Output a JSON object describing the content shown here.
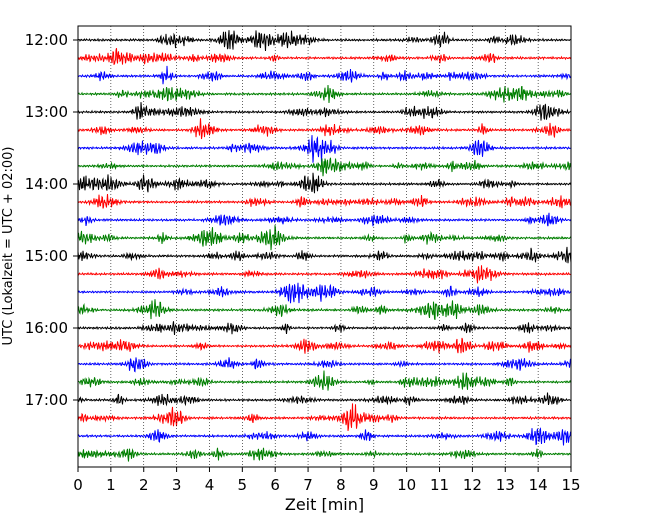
{
  "chart_data": {
    "type": "line",
    "subtype": "seismogram-helicorder",
    "title": "",
    "xlabel": "Zeit  [min]",
    "ylabel": "UTC (Lokalzeit = UTC + 02:00)",
    "xlim": [
      0,
      15
    ],
    "x_ticks": [
      0,
      1,
      2,
      3,
      4,
      5,
      6,
      7,
      8,
      9,
      10,
      11,
      12,
      13,
      14,
      15
    ],
    "x_tick_labels": [
      "0",
      "1",
      "2",
      "3",
      "4",
      "5",
      "6",
      "7",
      "8",
      "9",
      "10",
      "11",
      "12",
      "13",
      "14",
      "15"
    ],
    "y_ticks": [
      "12:00",
      "13:00",
      "14:00",
      "15:00",
      "16:00",
      "17:00"
    ],
    "row_interval_minutes": 15,
    "rows": [
      "12:00",
      "12:15",
      "12:30",
      "12:45",
      "13:00",
      "13:15",
      "13:30",
      "13:45",
      "14:00",
      "14:15",
      "14:30",
      "14:45",
      "15:00",
      "15:15",
      "15:30",
      "15:45",
      "16:00",
      "16:15",
      "16:30",
      "16:45",
      "17:00",
      "17:15",
      "17:30",
      "17:45"
    ],
    "row_colors": [
      "#000000",
      "#ff0000",
      "#0000ff",
      "#007f00"
    ],
    "grid": {
      "x": true,
      "y": false,
      "style": "dotted"
    },
    "legend": "none"
  }
}
